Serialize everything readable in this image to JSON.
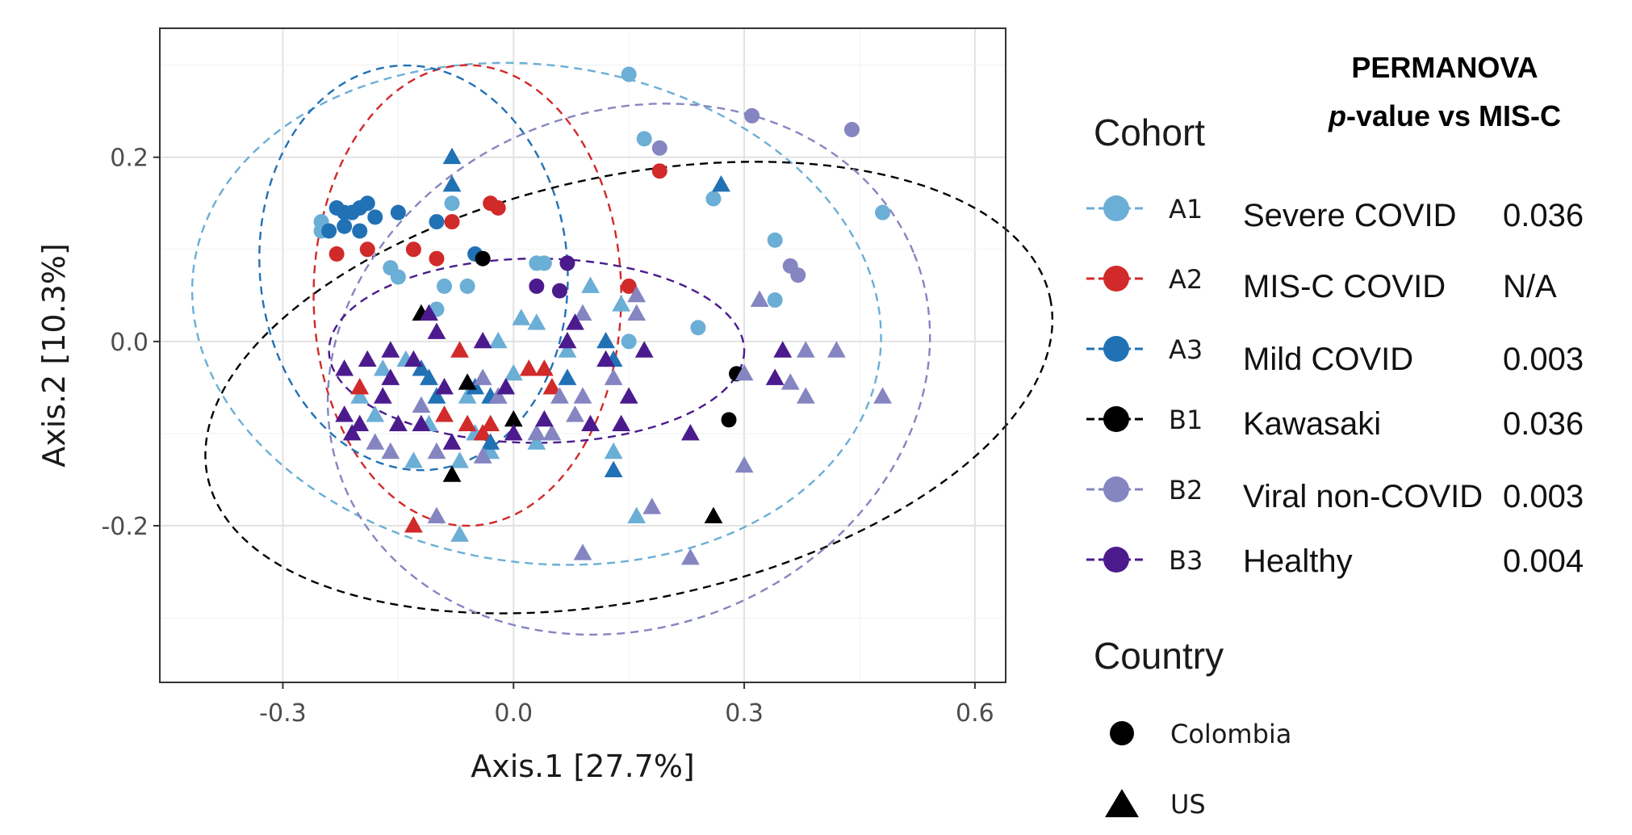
{
  "chart_data": {
    "type": "scatter",
    "xlabel": "Axis.1   [27.7%]",
    "ylabel": "Axis.2   [10.3%]",
    "xlim": [
      -0.46,
      0.64
    ],
    "ylim": [
      -0.37,
      0.34
    ],
    "xticks": [
      {
        "value": -0.3,
        "label": "-0.3"
      },
      {
        "value": 0.0,
        "label": "0.0"
      },
      {
        "value": 0.3,
        "label": "0.3"
      },
      {
        "value": 0.6,
        "label": "0.6"
      }
    ],
    "yticks": [
      {
        "value": -0.2,
        "label": "-0.2"
      },
      {
        "value": 0.0,
        "label": "0.0"
      },
      {
        "value": 0.2,
        "label": "0.2"
      }
    ],
    "grid": true,
    "legend": {
      "cohort_title": "Cohort",
      "country_title": "Country",
      "cohorts": [
        {
          "key": "A1",
          "label": "A1",
          "color": "#6BAED6"
        },
        {
          "key": "A2",
          "label": "A2",
          "color": "#D12A2A"
        },
        {
          "key": "A3",
          "label": "A3",
          "color": "#2171B5"
        },
        {
          "key": "B1",
          "label": "B1",
          "color": "#000000"
        },
        {
          "key": "B2",
          "label": "B2",
          "color": "#8585C2"
        },
        {
          "key": "B3",
          "label": "B3",
          "color": "#4B1B8E"
        }
      ],
      "countries": [
        {
          "label": "Colombia",
          "shape": "circle"
        },
        {
          "label": "US",
          "shape": "triangle"
        }
      ]
    },
    "ellipses": [
      {
        "series": "A1",
        "cx": 0.03,
        "cy": 0.03,
        "rx": 0.45,
        "ry": 0.27,
        "angle_deg": 8
      },
      {
        "series": "A2",
        "cx": -0.06,
        "cy": 0.05,
        "rx": 0.2,
        "ry": 0.25,
        "angle_deg": 0
      },
      {
        "series": "A3",
        "cx": -0.13,
        "cy": 0.08,
        "rx": 0.2,
        "ry": 0.22,
        "angle_deg": -5
      },
      {
        "series": "B1",
        "cx": 0.15,
        "cy": -0.05,
        "rx": 0.56,
        "ry": 0.23,
        "angle_deg": -12
      },
      {
        "series": "B2",
        "cx": 0.15,
        "cy": -0.03,
        "rx": 0.4,
        "ry": 0.28,
        "angle_deg": -22
      },
      {
        "series": "B3",
        "cx": 0.03,
        "cy": -0.01,
        "rx": 0.27,
        "ry": 0.1,
        "angle_deg": 0
      }
    ],
    "series": [
      {
        "name": "A1",
        "points": [
          [
            0.15,
            0.29
          ],
          [
            0.17,
            0.22
          ],
          [
            0.48,
            0.14
          ],
          [
            0.34,
            0.11
          ],
          [
            0.26,
            0.155
          ],
          [
            -0.08,
            0.15
          ],
          [
            -0.25,
            0.13
          ],
          [
            -0.25,
            0.12
          ],
          [
            -0.16,
            0.08
          ],
          [
            -0.15,
            0.07
          ],
          [
            -0.09,
            0.06
          ],
          [
            -0.06,
            0.06
          ],
          [
            0.03,
            0.085
          ],
          [
            0.04,
            0.085
          ],
          [
            -0.1,
            0.035
          ],
          [
            0.34,
            0.045
          ],
          [
            0.24,
            0.015
          ],
          [
            0.15,
            0.0
          ],
          [
            0.01,
            0.025
          ],
          [
            0.03,
            0.02
          ],
          [
            0.1,
            0.06
          ],
          [
            -0.02,
            0.0
          ],
          [
            0.07,
            -0.01
          ],
          [
            0.14,
            0.04
          ],
          [
            -0.17,
            -0.03
          ],
          [
            -0.14,
            -0.02
          ],
          [
            0.0,
            -0.035
          ],
          [
            -0.06,
            -0.06
          ],
          [
            -0.02,
            -0.06
          ],
          [
            -0.18,
            -0.08
          ],
          [
            -0.11,
            -0.09
          ],
          [
            -0.05,
            -0.1
          ],
          [
            -0.03,
            -0.12
          ],
          [
            -0.13,
            -0.13
          ],
          [
            -0.07,
            -0.13
          ],
          [
            0.16,
            -0.19
          ],
          [
            -0.07,
            -0.21
          ],
          [
            0.13,
            -0.12
          ],
          [
            0.03,
            -0.11
          ],
          [
            -0.2,
            -0.06
          ]
        ]
      },
      {
        "name": "A2",
        "points": [
          [
            0.19,
            0.185
          ],
          [
            -0.02,
            0.145
          ],
          [
            -0.03,
            0.15
          ],
          [
            -0.08,
            0.13
          ],
          [
            -0.23,
            0.095
          ],
          [
            -0.19,
            0.1
          ],
          [
            -0.13,
            0.1
          ],
          [
            -0.1,
            0.09
          ],
          [
            0.15,
            0.06
          ],
          [
            -0.07,
            -0.01
          ],
          [
            0.04,
            -0.03
          ],
          [
            0.05,
            -0.05
          ],
          [
            -0.2,
            -0.05
          ],
          [
            -0.09,
            -0.08
          ],
          [
            -0.06,
            -0.09
          ],
          [
            -0.03,
            -0.09
          ],
          [
            -0.04,
            -0.1
          ],
          [
            -0.13,
            -0.2
          ],
          [
            0.02,
            -0.03
          ]
        ]
      },
      {
        "name": "A3",
        "points": [
          [
            -0.23,
            0.145
          ],
          [
            -0.22,
            0.14
          ],
          [
            -0.21,
            0.14
          ],
          [
            -0.2,
            0.145
          ],
          [
            -0.19,
            0.15
          ],
          [
            -0.22,
            0.125
          ],
          [
            -0.2,
            0.12
          ],
          [
            -0.18,
            0.135
          ],
          [
            -0.15,
            0.14
          ],
          [
            -0.1,
            0.13
          ],
          [
            -0.24,
            0.12
          ],
          [
            -0.05,
            0.095
          ],
          [
            -0.08,
            0.2
          ],
          [
            -0.08,
            0.17
          ],
          [
            0.27,
            0.17
          ],
          [
            0.12,
            0.0
          ],
          [
            0.13,
            -0.02
          ],
          [
            0.07,
            -0.04
          ],
          [
            -0.12,
            -0.03
          ],
          [
            -0.05,
            -0.05
          ],
          [
            -0.03,
            -0.06
          ],
          [
            -0.1,
            -0.06
          ],
          [
            0.13,
            -0.14
          ],
          [
            -0.03,
            -0.11
          ],
          [
            -0.11,
            -0.04
          ]
        ]
      },
      {
        "name": "B1",
        "points": [
          [
            -0.04,
            0.09
          ],
          [
            0.29,
            -0.035
          ],
          [
            0.28,
            -0.085
          ],
          [
            -0.12,
            0.03
          ],
          [
            -0.06,
            -0.045
          ],
          [
            0.0,
            -0.085
          ],
          [
            -0.08,
            -0.145
          ],
          [
            0.26,
            -0.19
          ]
        ]
      },
      {
        "name": "B2",
        "points": [
          [
            0.31,
            0.245
          ],
          [
            0.44,
            0.23
          ],
          [
            0.19,
            0.21
          ],
          [
            0.36,
            0.082
          ],
          [
            0.37,
            0.072
          ],
          [
            0.09,
            0.03
          ],
          [
            0.16,
            0.03
          ],
          [
            0.16,
            0.05
          ],
          [
            0.32,
            0.045
          ],
          [
            0.42,
            -0.01
          ],
          [
            0.38,
            -0.01
          ],
          [
            0.48,
            -0.06
          ],
          [
            0.38,
            -0.06
          ],
          [
            0.3,
            -0.035
          ],
          [
            0.06,
            -0.06
          ],
          [
            0.09,
            -0.06
          ],
          [
            0.12,
            -0.02
          ],
          [
            0.13,
            -0.04
          ],
          [
            0.36,
            -0.045
          ],
          [
            0.3,
            -0.135
          ],
          [
            -0.04,
            -0.04
          ],
          [
            -0.02,
            -0.06
          ],
          [
            -0.1,
            -0.12
          ],
          [
            -0.16,
            -0.12
          ],
          [
            -0.12,
            -0.07
          ],
          [
            -0.18,
            -0.11
          ],
          [
            0.03,
            -0.1
          ],
          [
            0.08,
            -0.08
          ],
          [
            0.18,
            -0.18
          ],
          [
            0.09,
            -0.23
          ],
          [
            0.23,
            -0.235
          ],
          [
            -0.1,
            -0.19
          ],
          [
            0.05,
            -0.1
          ],
          [
            -0.04,
            -0.125
          ]
        ]
      },
      {
        "name": "B3",
        "points": [
          [
            0.03,
            0.06
          ],
          [
            0.06,
            0.055
          ],
          [
            0.07,
            0.085
          ],
          [
            -0.1,
            0.01
          ],
          [
            -0.11,
            0.03
          ],
          [
            -0.04,
            0.0
          ],
          [
            0.07,
            0.0
          ],
          [
            0.12,
            -0.02
          ],
          [
            0.17,
            -0.01
          ],
          [
            0.08,
            0.02
          ],
          [
            -0.16,
            -0.01
          ],
          [
            -0.19,
            -0.02
          ],
          [
            -0.22,
            -0.03
          ],
          [
            -0.16,
            -0.04
          ],
          [
            -0.13,
            -0.02
          ],
          [
            -0.09,
            -0.05
          ],
          [
            -0.01,
            -0.05
          ],
          [
            0.15,
            -0.06
          ],
          [
            0.14,
            -0.09
          ],
          [
            0.23,
            -0.1
          ],
          [
            0.35,
            -0.01
          ],
          [
            0.34,
            -0.04
          ],
          [
            -0.12,
            -0.09
          ],
          [
            -0.15,
            -0.09
          ],
          [
            -0.21,
            -0.1
          ],
          [
            -0.08,
            -0.11
          ],
          [
            0.0,
            -0.1
          ],
          [
            0.04,
            -0.085
          ],
          [
            0.1,
            -0.09
          ],
          [
            -0.17,
            -0.06
          ],
          [
            -0.22,
            -0.08
          ],
          [
            -0.2,
            -0.09
          ]
        ]
      }
    ]
  },
  "permanova": {
    "header_line1": "PERMANOVA",
    "header_italic": "p",
    "header_line2_rest": "-value vs MIS-C",
    "rows": [
      {
        "group": "Severe COVID",
        "value": "0.036"
      },
      {
        "group": "MIS-C COVID",
        "value": "N/A"
      },
      {
        "group": "Mild COVID",
        "value": "0.003"
      },
      {
        "group": "Kawasaki",
        "value": "0.036"
      },
      {
        "group": "Viral non-COVID",
        "value": "0.003"
      },
      {
        "group": "Healthy",
        "value": "0.004"
      }
    ]
  }
}
